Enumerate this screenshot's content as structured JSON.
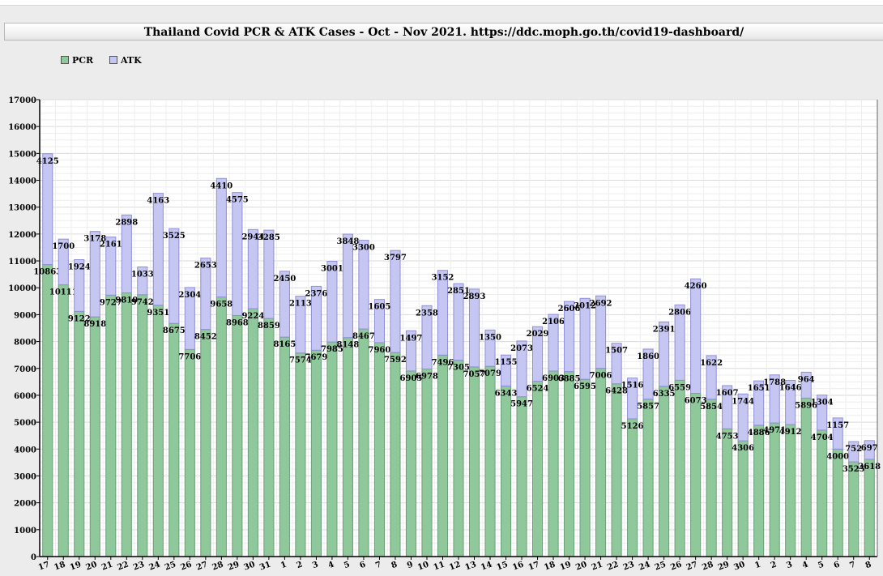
{
  "chart_data": {
    "type": "bar",
    "stacked": true,
    "title": "Thailand Covid PCR & ATK Cases - Oct - Nov 2021. https://ddc.moph.go.th/covid19-dashboard/",
    "legend_position": "top-left",
    "grid": true,
    "ylim": [
      0,
      17000
    ],
    "yticks": [
      0,
      1000,
      2000,
      3000,
      4000,
      5000,
      6000,
      7000,
      8000,
      9000,
      10000,
      11000,
      12000,
      13000,
      14000,
      15000,
      16000,
      17000
    ],
    "categories": [
      "17",
      "18",
      "19",
      "20",
      "21",
      "22",
      "23",
      "24",
      "25",
      "26",
      "27",
      "28",
      "29",
      "30",
      "31",
      "1",
      "2",
      "3",
      "4",
      "5",
      "6",
      "7",
      "8",
      "9",
      "10",
      "11",
      "12",
      "13",
      "14",
      "15",
      "16",
      "17",
      "18",
      "19",
      "20",
      "21",
      "22",
      "23",
      "24",
      "25",
      "26",
      "27",
      "28",
      "29",
      "30",
      "1",
      "2",
      "3",
      "4",
      "5",
      "6",
      "7",
      "8"
    ],
    "series": [
      {
        "name": "PCR",
        "color": "#8fc89b",
        "values": [
          10863,
          10111,
          9122,
          8918,
          9727,
          9810,
          9742,
          9351,
          8675,
          7706,
          8452,
          9658,
          8968,
          9224,
          8859,
          8165,
          7574,
          7679,
          7985,
          8148,
          8467,
          7960,
          7592,
          6905,
          6978,
          7496,
          7305,
          7057,
          7079,
          6343,
          5947,
          6524,
          6903,
          6885,
          6595,
          7006,
          6428,
          5126,
          5857,
          6335,
          6559,
          6073,
          5854,
          4753,
          4306,
          4886,
          4971,
          4912,
          5896,
          4704,
          4000,
          3525,
          3618
        ]
      },
      {
        "name": "ATK",
        "color": "#c6c6f3",
        "values": [
          4125,
          1700,
          1924,
          3178,
          2161,
          2898,
          1033,
          4163,
          3525,
          2304,
          2653,
          4410,
          4575,
          2944,
          3285,
          2450,
          2113,
          2376,
          3001,
          3848,
          3300,
          1605,
          3797,
          1497,
          2358,
          3152,
          2851,
          2893,
          1350,
          1155,
          2073,
          2029,
          2106,
          2606,
          3012,
          2692,
          1507,
          1516,
          1860,
          2391,
          2806,
          4260,
          1622,
          1607,
          1744,
          1651,
          1788,
          1646,
          964,
          1304,
          1157,
          752,
          697
        ]
      }
    ]
  }
}
